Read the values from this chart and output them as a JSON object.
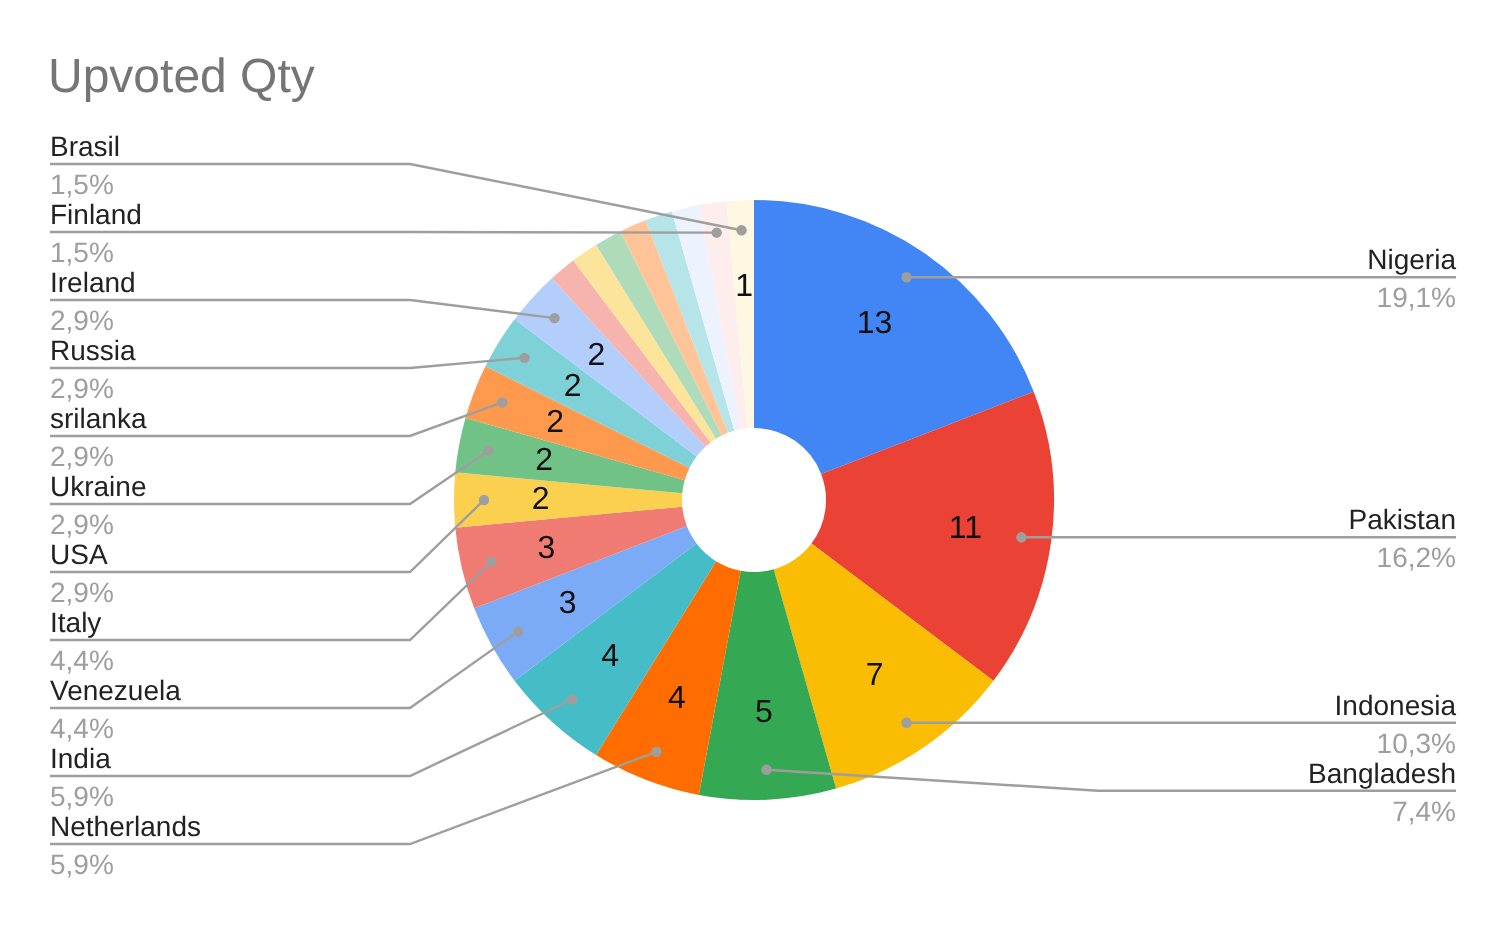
{
  "chart_data": {
    "type": "donut",
    "title": "Upvoted Qty",
    "categories": [
      "Nigeria",
      "Pakistan",
      "Indonesia",
      "Bangladesh",
      "Netherlands",
      "India",
      "Venezuela",
      "Italy",
      "USA",
      "Ukraine",
      "srilanka",
      "Russia",
      "Ireland",
      null,
      null,
      null,
      null,
      null,
      null,
      "Finland",
      "Brasil"
    ],
    "values": [
      13,
      11,
      7,
      5,
      4,
      4,
      3,
      3,
      2,
      2,
      2,
      2,
      2,
      1,
      1,
      1,
      1,
      1,
      1,
      1,
      1
    ],
    "colors": [
      "#4285f4",
      "#ea4335",
      "#fbbc04",
      "#34a853",
      "#ff6d01",
      "#46bdc6",
      "#7baaf7",
      "#f07b72",
      "#fcd04f",
      "#71c287",
      "#ff994d",
      "#7ed1d7",
      "#b3cefb",
      "#f7b4ae",
      "#fde49b",
      "#aedcba",
      "#ffc599",
      "#b5e5e8",
      "#ecf3fe",
      "#fdedec",
      "#fef8e3"
    ],
    "value_labels": [
      "13",
      "11",
      "7",
      "5",
      "4",
      "4",
      "3",
      "3",
      "2",
      "2",
      "2",
      "2",
      "2",
      null,
      null,
      null,
      null,
      null,
      null,
      null,
      "1"
    ],
    "annotations": [
      {
        "text": "19,1%",
        "x": "Nigeria"
      },
      {
        "text": "16,2%",
        "x": "Pakistan"
      },
      {
        "text": "10,3%",
        "x": "Indonesia"
      },
      {
        "text": "7,4%",
        "x": "Bangladesh"
      },
      {
        "text": "5,9%",
        "x": "Netherlands"
      },
      {
        "text": "5,9%",
        "x": "India"
      },
      {
        "text": "4,4%",
        "x": "Venezuela"
      },
      {
        "text": "4,4%",
        "x": "Italy"
      },
      {
        "text": "2,9%",
        "x": "USA"
      },
      {
        "text": "2,9%",
        "x": "Ukraine"
      },
      {
        "text": "2,9%",
        "x": "srilanka"
      },
      {
        "text": "2,9%",
        "x": "Russia"
      },
      {
        "text": "2,9%",
        "x": "Ireland"
      },
      {
        "text": "1,5%",
        "x": "Finland"
      },
      {
        "text": "1,5%",
        "x": "Brasil"
      }
    ]
  }
}
